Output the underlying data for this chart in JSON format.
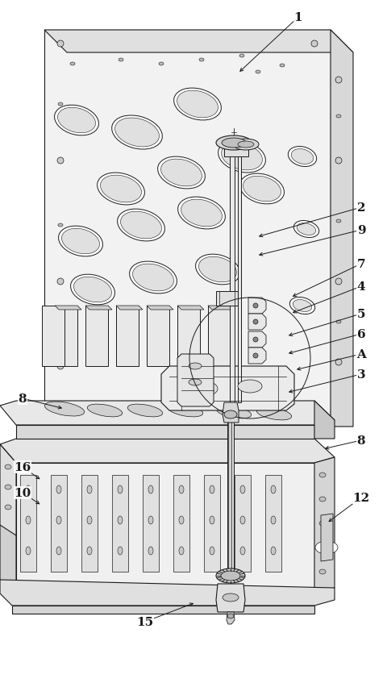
{
  "bg_color": "#ffffff",
  "line_color": "#1a1a1a",
  "face_color": "#f0f0f0",
  "face_dark": "#d8d8d8",
  "face_darker": "#c0c0c0",
  "face_side": "#e0e0e0",
  "hole_color": "#c8c8c8",
  "annotations": [
    [
      "1",
      370,
      22,
      295,
      92
    ],
    [
      "2",
      448,
      258,
      318,
      295
    ],
    [
      "9",
      448,
      286,
      318,
      318
    ],
    [
      "7",
      448,
      328,
      360,
      370
    ],
    [
      "4",
      448,
      356,
      360,
      390
    ],
    [
      "5",
      448,
      390,
      355,
      418
    ],
    [
      "6",
      448,
      415,
      355,
      440
    ],
    [
      "A",
      448,
      440,
      365,
      460
    ],
    [
      "3",
      448,
      465,
      355,
      488
    ],
    [
      "8",
      28,
      495,
      80,
      508
    ],
    [
      "8",
      448,
      547,
      400,
      558
    ],
    [
      "16",
      28,
      580,
      52,
      597
    ],
    [
      "10",
      28,
      612,
      52,
      628
    ],
    [
      "12",
      448,
      618,
      405,
      650
    ],
    [
      "15",
      180,
      772,
      243,
      748
    ]
  ]
}
